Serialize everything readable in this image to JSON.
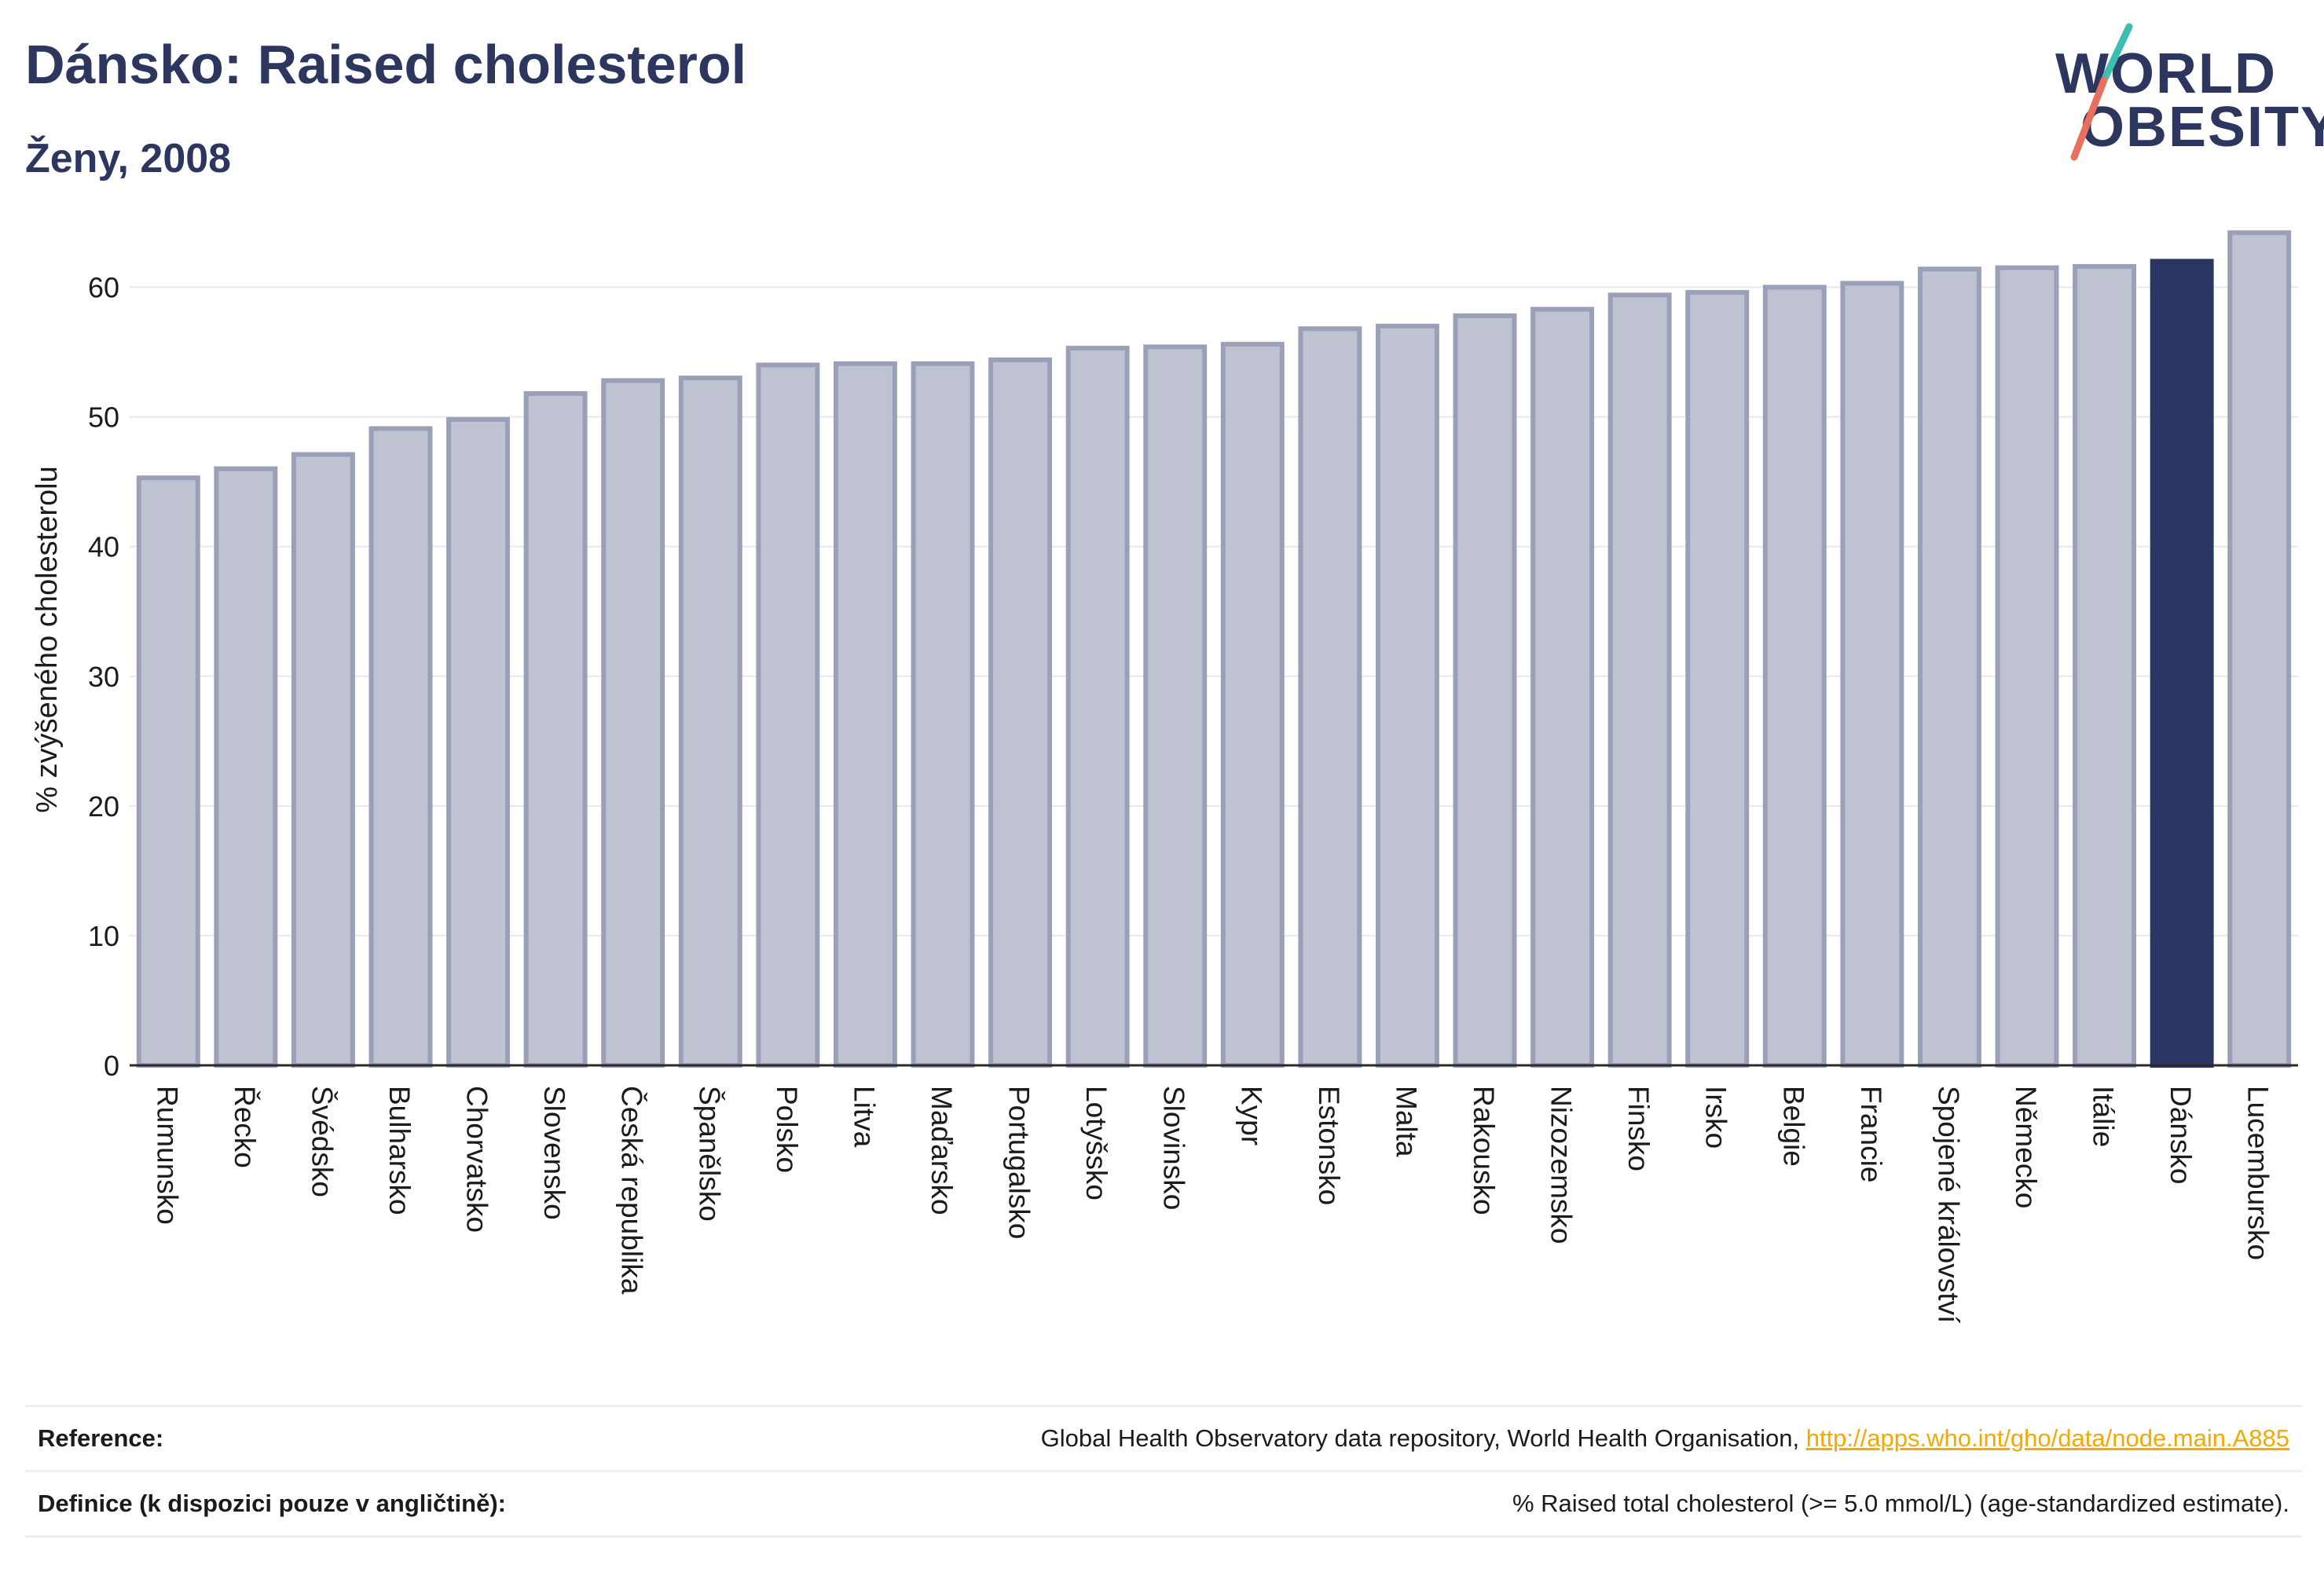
{
  "header": {
    "title": "Dánsko: Raised cholesterol",
    "subtitle": "Ženy, 2008"
  },
  "logo": {
    "line1": "WORLD",
    "line2": "OBESITY",
    "colors": {
      "text": "#2c365e",
      "slash_top": "#3bbfb2",
      "slash_bottom": "#e8705f"
    }
  },
  "chart_data": {
    "type": "bar",
    "title": "Dánsko: Raised cholesterol",
    "subtitle": "Ženy, 2008",
    "xlabel": "",
    "ylabel": "% zvýšeného cholesterolu",
    "ylim": [
      0,
      65
    ],
    "yticks": [
      0,
      10,
      20,
      30,
      40,
      50,
      60
    ],
    "grid": true,
    "highlight": "Dánsko",
    "colors": {
      "bar": "#bfc2d0",
      "bar_edge": "#9aa0b8",
      "highlight": "#2b3561",
      "axis": "#2a2a2a",
      "grid": "#e6e8ee"
    },
    "categories": [
      "Rumunsko",
      "Řecko",
      "Švédsko",
      "Bulharsko",
      "Chorvatsko",
      "Slovensko",
      "Česká republika",
      "Španělsko",
      "Polsko",
      "Litva",
      "Maďarsko",
      "Portugalsko",
      "Lotyšsko",
      "Slovinsko",
      "Kypr",
      "Estonsko",
      "Malta",
      "Rakousko",
      "Nizozemsko",
      "Finsko",
      "Irsko",
      "Belgie",
      "Francie",
      "Spojené království",
      "Německo",
      "Itálie",
      "Dánsko",
      "Lucembursko"
    ],
    "values": [
      45.3,
      46.0,
      47.1,
      49.1,
      49.8,
      51.8,
      52.8,
      53.0,
      54.0,
      54.1,
      54.1,
      54.4,
      55.3,
      55.4,
      55.6,
      56.8,
      57.0,
      57.8,
      58.3,
      59.4,
      59.6,
      60.0,
      60.3,
      61.4,
      61.5,
      61.6,
      62.0,
      64.2
    ]
  },
  "footer": {
    "reference_label": "Reference:",
    "reference_text": "Global Health Observatory data repository, World Health Organisation, ",
    "reference_link": "http://apps.who.int/gho/data/node.main.A885",
    "definition_label": "Definice (k dispozici pouze v angličtině):",
    "definition_text": "% Raised total cholesterol (>= 5.0 mmol/L) (age-standardized estimate)."
  }
}
